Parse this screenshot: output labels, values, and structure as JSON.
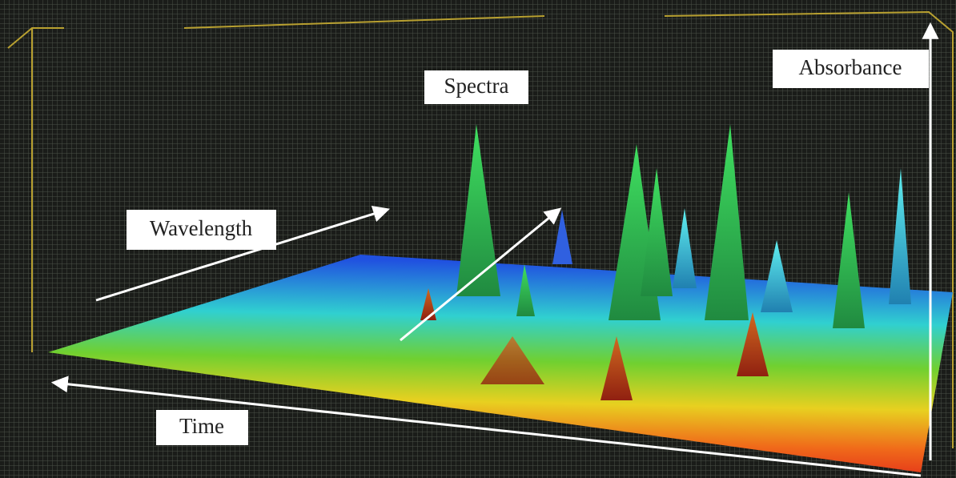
{
  "labels": {
    "spectra": "Spectra",
    "absorbance": "Absorbance",
    "wavelength": "Wavelength",
    "time": "Time"
  }
}
